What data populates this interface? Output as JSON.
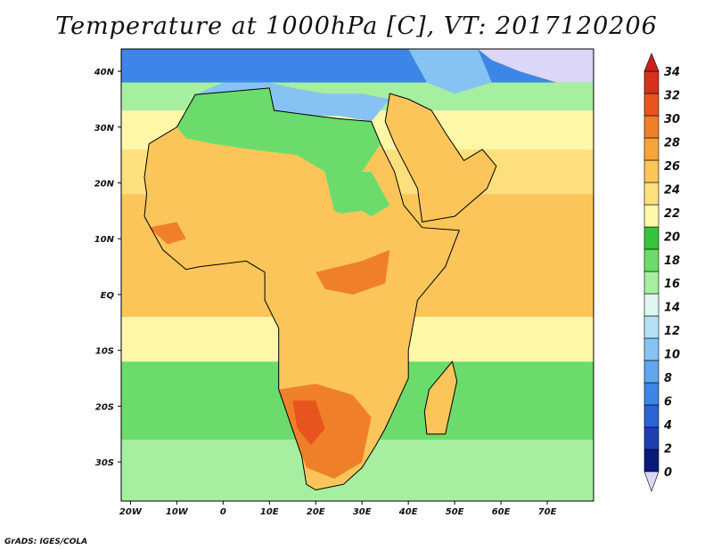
{
  "title": "Temperature at 1000hPa [C], VT: 2017120206",
  "credit": "GrADS: IGES/COLA",
  "map": {
    "lon_range": [
      -22,
      80
    ],
    "lat_range": [
      -37,
      44
    ],
    "lon_ticks": [
      {
        "lon": -20,
        "label": "20W"
      },
      {
        "lon": -10,
        "label": "10W"
      },
      {
        "lon": 0,
        "label": "0"
      },
      {
        "lon": 10,
        "label": "10E"
      },
      {
        "lon": 20,
        "label": "20E"
      },
      {
        "lon": 30,
        "label": "30E"
      },
      {
        "lon": 40,
        "label": "40E"
      },
      {
        "lon": 50,
        "label": "50E"
      },
      {
        "lon": 60,
        "label": "60E"
      },
      {
        "lon": 70,
        "label": "70E"
      }
    ],
    "lat_ticks": [
      {
        "lat": 40,
        "label": "40N"
      },
      {
        "lat": 30,
        "label": "30N"
      },
      {
        "lat": 20,
        "label": "20N"
      },
      {
        "lat": 10,
        "label": "10N"
      },
      {
        "lat": 0,
        "label": "EQ"
      },
      {
        "lat": -10,
        "label": "10S"
      },
      {
        "lat": -20,
        "label": "20S"
      },
      {
        "lat": -30,
        "label": "30S"
      }
    ]
  },
  "colorbar": {
    "levels": [
      "0",
      "2",
      "4",
      "6",
      "8",
      "10",
      "12",
      "14",
      "16",
      "18",
      "20",
      "22",
      "24",
      "26",
      "28",
      "30",
      "32",
      "34"
    ],
    "colors": [
      "#0a1a7a",
      "#1f3fb0",
      "#2e63d4",
      "#3d86e8",
      "#5fa7ef",
      "#86c3f2",
      "#b5e0f5",
      "#e0f6f0",
      "#a6eea0",
      "#6bdc6b",
      "#38c43a",
      "#fff7a8",
      "#fde07d",
      "#fbc55a",
      "#f6a53c",
      "#f07f2a",
      "#e8541e",
      "#d7301c"
    ],
    "under_color": "#dcd6f8",
    "over_color": "#cc1f1a"
  },
  "colors": {
    "ocean_equatorial": "#fbc55a",
    "ocean_tropical": "#fde07d",
    "ocean_subtropical": "#fff7a8",
    "cool_ocean": "#6bdc6b",
    "cold_ocean": "#a6eea0",
    "sahara_north": "#6bdc6b",
    "hot_land": "#f07f2a",
    "hottest_land": "#e8541e",
    "mediterranean": "#86c3f2",
    "europe": "#3d86e8",
    "himalaya_snow": "#dcd6f8",
    "coastline": "#000000"
  }
}
